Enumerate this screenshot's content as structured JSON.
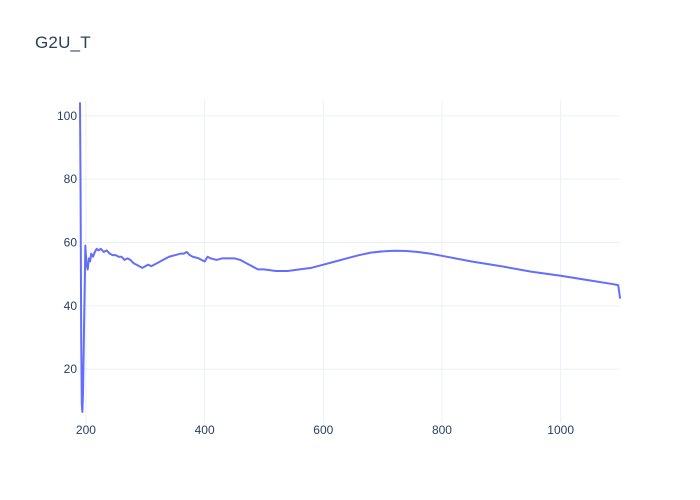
{
  "chart_data": {
    "type": "line",
    "title": "G2U_T",
    "xlabel": "",
    "ylabel": "",
    "xlim": [
      190,
      1100
    ],
    "ylim": [
      3,
      105
    ],
    "x_ticks": [
      200,
      400,
      600,
      800,
      1000
    ],
    "y_ticks": [
      20,
      40,
      60,
      80,
      100
    ],
    "grid": true,
    "line_color": "#636efa",
    "series": [
      {
        "x": [
          190,
          191,
          192,
          193,
          194,
          195,
          197,
          199,
          201,
          203,
          205,
          207,
          209,
          212,
          215,
          218,
          221,
          225,
          230,
          235,
          240,
          245,
          250,
          255,
          260,
          265,
          270,
          275,
          280,
          285,
          290,
          295,
          300,
          305,
          310,
          320,
          330,
          340,
          350,
          360,
          365,
          370,
          375,
          380,
          390,
          400,
          405,
          410,
          420,
          430,
          440,
          450,
          460,
          470,
          480,
          490,
          500,
          520,
          540,
          560,
          580,
          600,
          620,
          640,
          660,
          680,
          700,
          720,
          740,
          760,
          780,
          800,
          850,
          900,
          950,
          1000,
          1050,
          1090,
          1097,
          1100
        ],
        "y": [
          104,
          75,
          30,
          9,
          6.5,
          12,
          35,
          59,
          53,
          51.5,
          55,
          54,
          56.5,
          55.5,
          57,
          58,
          57.5,
          58,
          57,
          57.5,
          56.5,
          56,
          56,
          55.5,
          55.5,
          54.5,
          55,
          54.5,
          53.5,
          53,
          52.5,
          52,
          52.5,
          53,
          52.5,
          53.5,
          54.5,
          55.5,
          56,
          56.5,
          56.5,
          57,
          56,
          55.5,
          55,
          54,
          55.5,
          55,
          54.5,
          55,
          55,
          55,
          54.5,
          53.5,
          52.5,
          51.5,
          51.5,
          51,
          51,
          51.5,
          52,
          53,
          54,
          55,
          56,
          56.8,
          57.2,
          57.4,
          57.3,
          57,
          56.5,
          55.8,
          54,
          52.5,
          50.8,
          49.5,
          48,
          46.8,
          46.5,
          42.5
        ]
      }
    ]
  }
}
